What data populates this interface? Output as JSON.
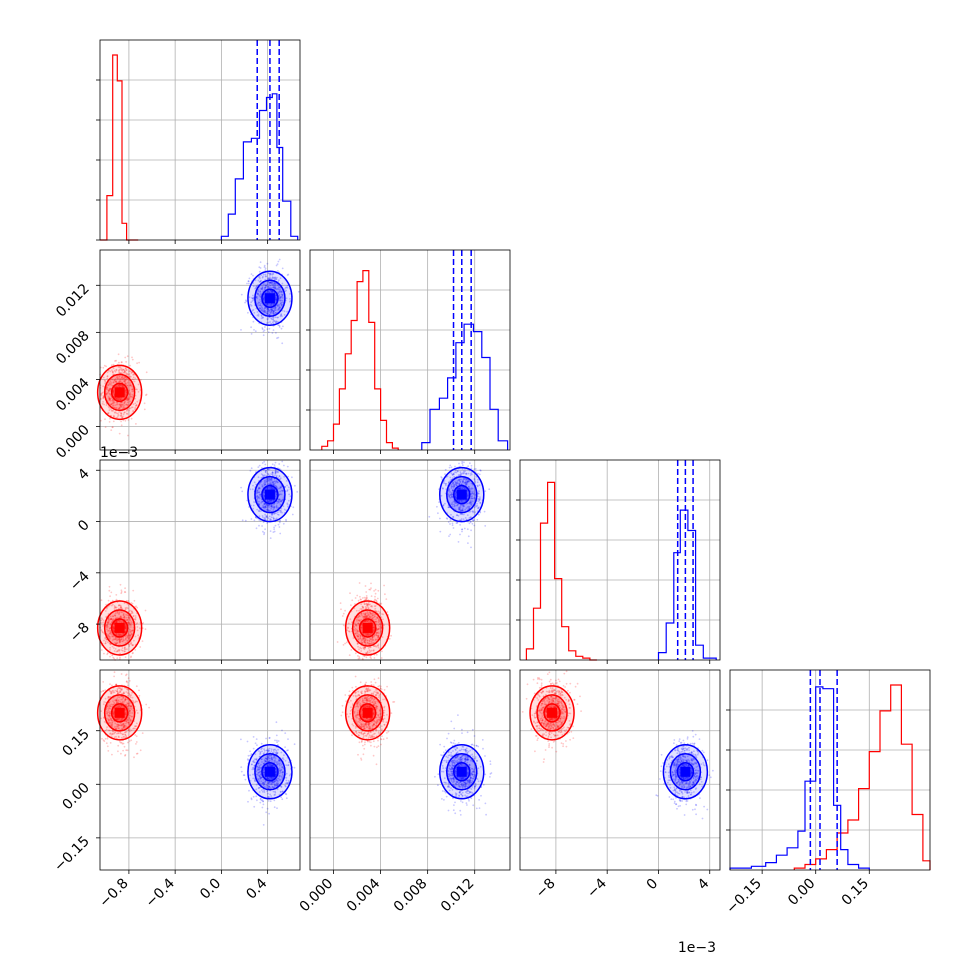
{
  "chart_data": {
    "type": "corner",
    "parameters": [
      {
        "ticks": [
          -0.8,
          -0.4,
          0.0,
          0.4
        ],
        "tick_labels": [
          "−0.8",
          "−0.4",
          "0.0",
          "0.4"
        ],
        "range": [
          -1.05,
          0.68
        ]
      },
      {
        "ticks": [
          0.0,
          0.004,
          0.008,
          0.012
        ],
        "tick_labels": [
          "0.000",
          "0.004",
          "0.008",
          "0.012"
        ],
        "range": [
          -0.002,
          0.015
        ],
        "offset_label": ""
      },
      {
        "ticks": [
          -8,
          -4,
          0,
          4
        ],
        "tick_labels": [
          "−8",
          "−4",
          "0",
          "4"
        ],
        "range": [
          -10.8,
          4.8
        ],
        "offset_label": "1e−3"
      },
      {
        "ticks": [
          -0.15,
          0.0,
          0.15
        ],
        "tick_labels": [
          "−0.15",
          "0.00",
          "0.15"
        ],
        "range": [
          -0.24,
          0.32
        ]
      }
    ],
    "y_offset_label": "1e−3",
    "grid": true,
    "series": [
      {
        "color": "#ff0000",
        "means": [
          -0.88,
          0.0029,
          -8.3,
          0.2
        ],
        "histograms": [
          {
            "edges": [
              -1.05,
              -0.99,
              -0.94,
              -0.9,
              -0.86,
              -0.82,
              -0.77,
              -0.72
            ],
            "counts": [
              0,
              0.24,
              1.0,
              0.86,
              0.09,
              0,
              0
            ]
          },
          {
            "edges": [
              -0.001,
              -0.0005,
              0.0,
              0.0005,
              0.001,
              0.0015,
              0.002,
              0.0025,
              0.003,
              0.0035,
              0.004,
              0.0045,
              0.005,
              0.0055
            ],
            "counts": [
              0.02,
              0.05,
              0.14,
              0.33,
              0.52,
              0.7,
              0.91,
              0.97,
              0.69,
              0.33,
              0.16,
              0.04,
              0.01
            ]
          },
          {
            "edges": [
              -10.3,
              -9.75,
              -9.2,
              -8.65,
              -8.1,
              -7.55,
              -7.0,
              -6.45,
              -5.9,
              -5.35,
              -4.8
            ],
            "counts": [
              0.06,
              0.28,
              0.74,
              0.96,
              0.44,
              0.18,
              0.05,
              0.02,
              0.01,
              0
            ]
          },
          {
            "edges": [
              -0.06,
              -0.03,
              0.0,
              0.03,
              0.06,
              0.09,
              0.12,
              0.15,
              0.18,
              0.21,
              0.24,
              0.27,
              0.3,
              0.32
            ],
            "counts": [
              0.01,
              0.03,
              0.06,
              0.11,
              0.2,
              0.27,
              0.44,
              0.64,
              0.86,
              1.0,
              0.68,
              0.3,
              0.05
            ]
          }
        ]
      },
      {
        "color": "#0000ff",
        "means": [
          0.42,
          0.0109,
          2.1,
          0.035
        ],
        "histograms": [
          {
            "edges": [
              0.0,
              0.06,
              0.12,
              0.19,
              0.26,
              0.33,
              0.39,
              0.44,
              0.48,
              0.53,
              0.6,
              0.66
            ],
            "counts": [
              0.02,
              0.14,
              0.33,
              0.53,
              0.55,
              0.7,
              0.77,
              0.79,
              0.5,
              0.21,
              0.02
            ]
          },
          {
            "edges": [
              0.0075,
              0.0082,
              0.009,
              0.0097,
              0.0104,
              0.0111,
              0.0119,
              0.0126,
              0.0133,
              0.014,
              0.0148
            ],
            "counts": [
              0.04,
              0.22,
              0.28,
              0.39,
              0.58,
              0.68,
              0.64,
              0.5,
              0.22,
              0.05
            ]
          },
          {
            "edges": [
              0.0,
              0.6,
              1.2,
              1.7,
              2.3,
              2.9,
              3.5,
              4.5
            ],
            "counts": [
              0.04,
              0.2,
              0.58,
              0.81,
              0.7,
              0.08,
              0.01
            ]
          },
          {
            "edges": [
              -0.24,
              -0.18,
              -0.14,
              -0.11,
              -0.08,
              -0.05,
              -0.03,
              0.0,
              0.02,
              0.05,
              0.07,
              0.09,
              0.12,
              0.15
            ],
            "counts": [
              0.01,
              0.02,
              0.04,
              0.08,
              0.12,
              0.21,
              0.48,
              0.99,
              0.98,
              0.35,
              0.11,
              0.03,
              0.01
            ]
          }
        ],
        "quantiles": [
          [
            0.31,
            0.42,
            0.5
          ],
          [
            0.0102,
            0.0109,
            0.0117
          ],
          [
            1.5,
            2.1,
            2.7
          ],
          [
            -0.015,
            0.012,
            0.06
          ]
        ]
      }
    ]
  }
}
